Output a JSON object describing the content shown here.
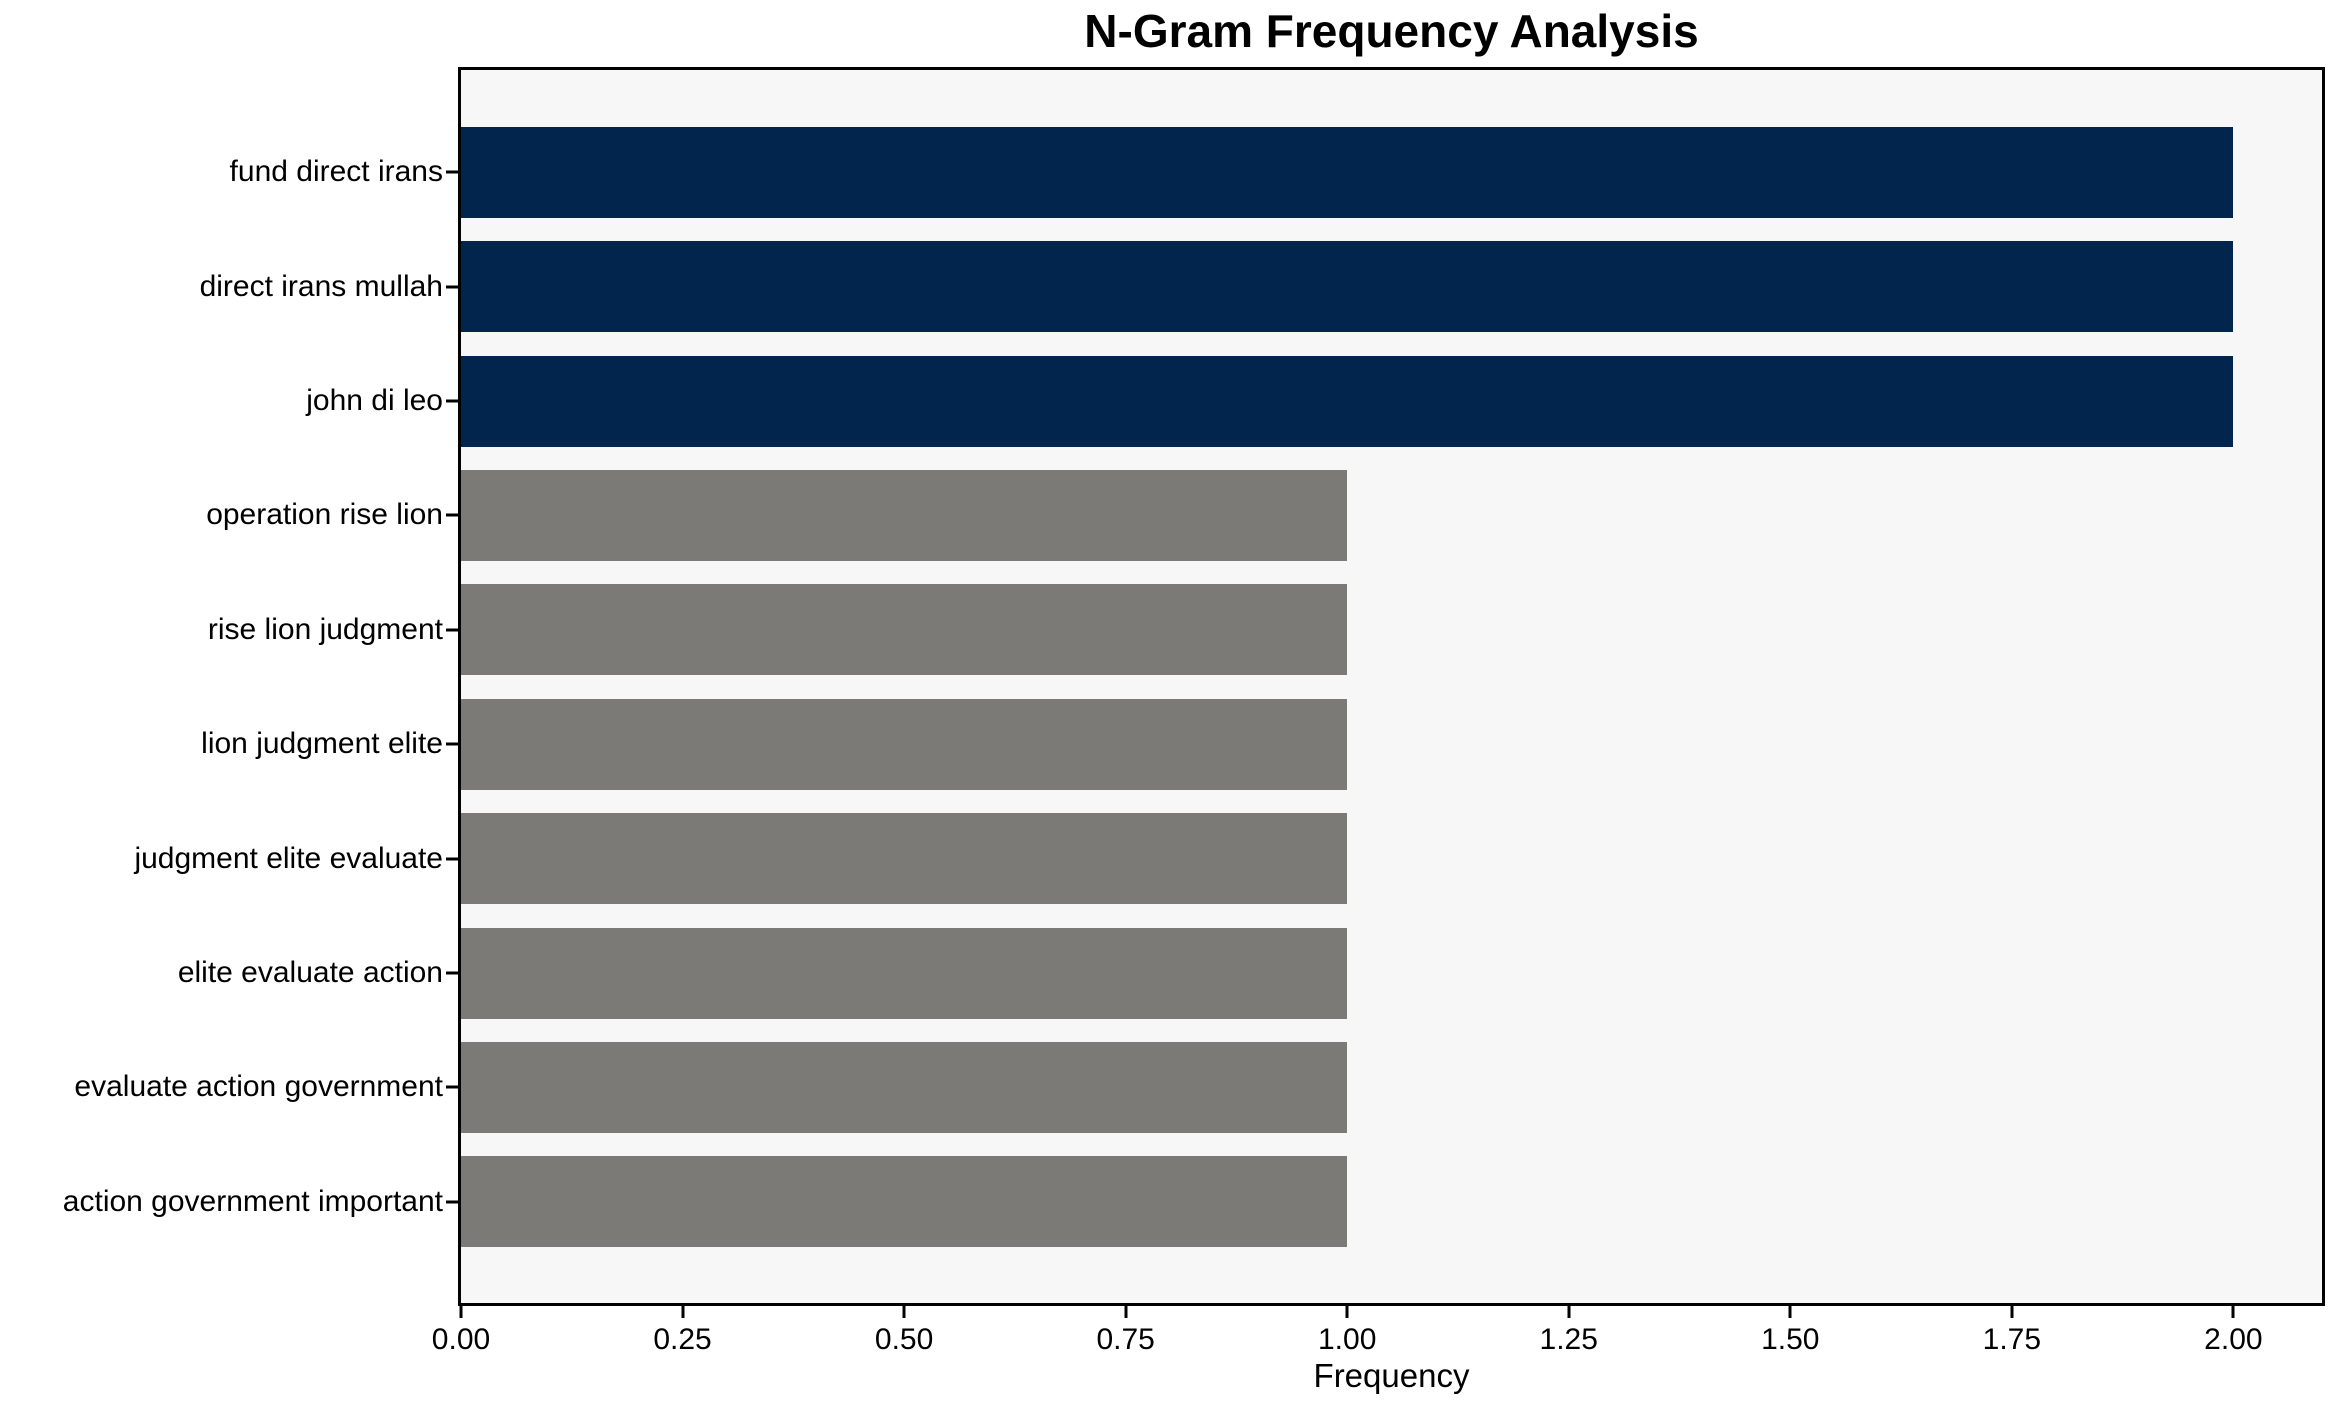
{
  "chart_data": {
    "type": "bar",
    "orientation": "horizontal",
    "title": "N-Gram Frequency Analysis",
    "xlabel": "Frequency",
    "ylabel": "",
    "categories": [
      "fund direct irans",
      "direct irans mullah",
      "john di leo",
      "operation rise lion",
      "rise lion judgment",
      "lion judgment elite",
      "judgment elite evaluate",
      "elite evaluate action",
      "evaluate action government",
      "action government important"
    ],
    "values": [
      2,
      2,
      2,
      1,
      1,
      1,
      1,
      1,
      1,
      1
    ],
    "bar_colors": [
      "#02254e",
      "#02254e",
      "#02254e",
      "#7b7a76",
      "#7b7a76",
      "#7b7a76",
      "#7b7a76",
      "#7b7a76",
      "#7b7a76",
      "#7b7a76"
    ],
    "x_tick_labels": [
      "0.00",
      "0.25",
      "0.50",
      "0.75",
      "1.00",
      "1.25",
      "1.50",
      "1.75",
      "2.00"
    ],
    "x_tick_values": [
      0,
      0.25,
      0.5,
      0.75,
      1.0,
      1.25,
      1.5,
      1.75,
      2.0
    ],
    "xlim": [
      0,
      2.1
    ],
    "grid": false,
    "legend": null,
    "colors": {
      "highlight_bar": "#02254e",
      "default_bar": "#7b7a76",
      "plot_background": "#f7f7f7",
      "figure_background": "#ffffff",
      "axis": "#000000"
    }
  }
}
